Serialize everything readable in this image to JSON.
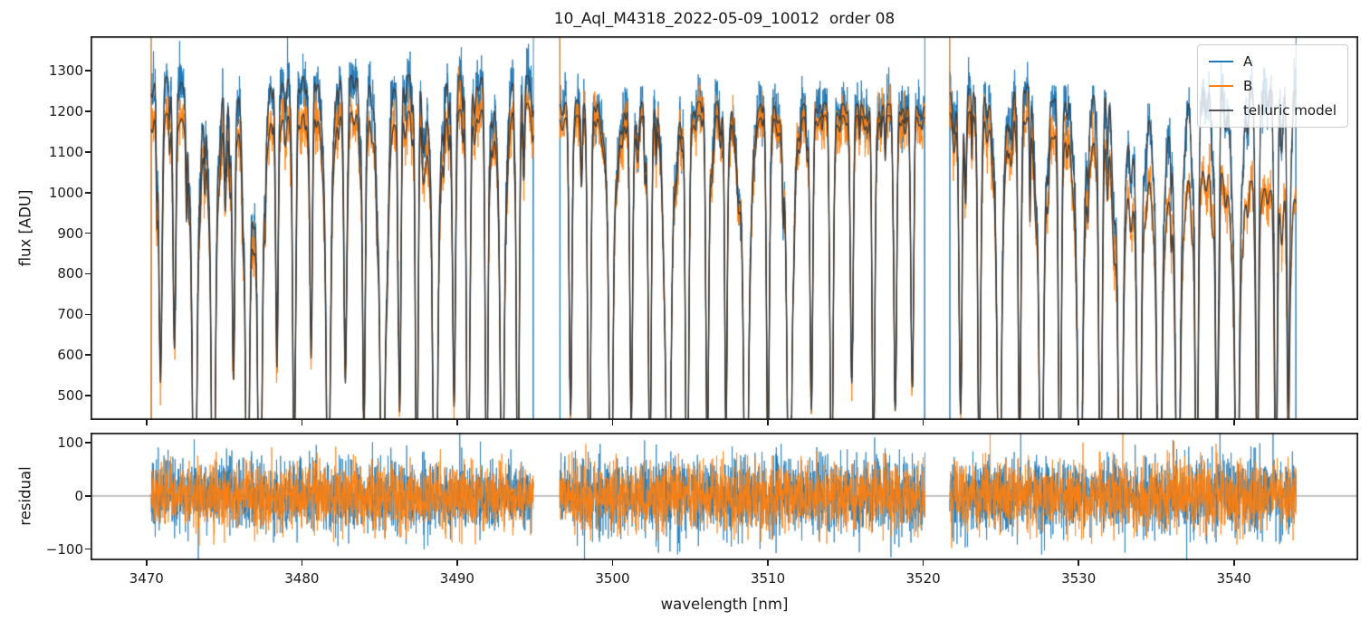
{
  "chart_data": {
    "type": "line",
    "title": "10_Aql_M4318_2022-05-09_10012  order 08",
    "xlabel": "wavelength [nm]",
    "xlim": [
      3466.4,
      3548.0
    ],
    "xticks": [
      3470,
      3480,
      3490,
      3500,
      3510,
      3520,
      3530,
      3540
    ],
    "xtick_labels": [
      "3470",
      "3480",
      "3490",
      "3500",
      "3510",
      "3520",
      "3530",
      "3540"
    ],
    "grid": false,
    "legend_position": "upper right",
    "legend": [
      {
        "label": "A",
        "color": "#1f77b4"
      },
      {
        "label": "B",
        "color": "#ff7f0e"
      },
      {
        "label": "telluric model",
        "color": "#53565a"
      }
    ],
    "panels": [
      {
        "name": "flux",
        "ylabel": "flux [ADU]",
        "ylim": [
          440,
          1385
        ],
        "yticks": [
          500,
          600,
          700,
          800,
          900,
          1000,
          1100,
          1200,
          1300
        ],
        "ytick_labels": [
          "500",
          "600",
          "700",
          "800",
          "900",
          "1000",
          "1100",
          "1200",
          "1300"
        ]
      },
      {
        "name": "residual",
        "ylabel": "residual",
        "ylim": [
          -121,
          119
        ],
        "yticks": [
          100,
          0,
          -100
        ],
        "ytick_labels": [
          "100",
          "0",
          "−100"
        ],
        "zero_line": true,
        "zero_line_color": "#888888"
      }
    ],
    "series_colors": {
      "A": "#1f77b4",
      "B": "#ff7f0e",
      "model": "#3d3d3d"
    },
    "segments": [
      {
        "start": 3470.3,
        "end": 3494.9,
        "b_start_spike": "full"
      },
      {
        "start": 3496.6,
        "end": 3520.1,
        "b_start_spike": "top"
      },
      {
        "start": 3521.7,
        "end": 3544.0,
        "b_start_spike": "top"
      }
    ],
    "continuum_A": [
      [
        3470.3,
        1282
      ],
      [
        3473,
        1290
      ],
      [
        3476,
        1288
      ],
      [
        3479,
        1285
      ],
      [
        3482,
        1292
      ],
      [
        3485,
        1294
      ],
      [
        3488,
        1290
      ],
      [
        3491,
        1288
      ],
      [
        3494.9,
        1289
      ],
      [
        3496.6,
        1226
      ],
      [
        3500,
        1228
      ],
      [
        3504,
        1222
      ],
      [
        3508,
        1226
      ],
      [
        3512,
        1222
      ],
      [
        3516,
        1219
      ],
      [
        3520.1,
        1215
      ],
      [
        3521.7,
        1248
      ],
      [
        3523,
        1256
      ],
      [
        3525,
        1268
      ],
      [
        3527,
        1272
      ],
      [
        3529,
        1263
      ],
      [
        3531,
        1256
      ],
      [
        3533,
        1250
      ],
      [
        3535,
        1258
      ],
      [
        3537,
        1262
      ],
      [
        3539,
        1257
      ],
      [
        3541,
        1262
      ],
      [
        3544,
        1255
      ]
    ],
    "continuum_B": [
      [
        3470.3,
        1192
      ],
      [
        3473,
        1200
      ],
      [
        3476,
        1197
      ],
      [
        3479,
        1193
      ],
      [
        3482,
        1200
      ],
      [
        3485,
        1204
      ],
      [
        3488,
        1199
      ],
      [
        3491,
        1206
      ],
      [
        3493,
        1212
      ],
      [
        3494.9,
        1222
      ],
      [
        3496.6,
        1188
      ],
      [
        3500,
        1192
      ],
      [
        3504,
        1188
      ],
      [
        3508,
        1192
      ],
      [
        3512,
        1190
      ],
      [
        3516,
        1190
      ],
      [
        3520.1,
        1189
      ],
      [
        3521.7,
        1198
      ],
      [
        3524,
        1200
      ],
      [
        3526,
        1196
      ],
      [
        3527.5,
        1186
      ],
      [
        3529,
        1162
      ],
      [
        3531,
        1136
      ],
      [
        3533,
        1106
      ],
      [
        3535,
        1092
      ],
      [
        3536.5,
        1071
      ],
      [
        3538,
        1058
      ],
      [
        3539.5,
        1050
      ],
      [
        3541,
        1034
      ],
      [
        3542.5,
        1006
      ],
      [
        3544,
        984
      ]
    ],
    "absorption_lines": [
      [
        3470.9,
        0.55,
        0.1
      ],
      [
        3471.8,
        0.45,
        0.09
      ],
      [
        3473.1,
        0.95,
        0.12
      ],
      [
        3474.3,
        1.0,
        0.1
      ],
      [
        3475.6,
        0.55,
        0.09
      ],
      [
        3476.5,
        0.95,
        0.1
      ],
      [
        3477.3,
        1.0,
        0.11
      ],
      [
        3478.4,
        0.5,
        0.08
      ],
      [
        3479.5,
        0.75,
        0.09
      ],
      [
        3480.6,
        0.5,
        0.08
      ],
      [
        3481.7,
        0.9,
        0.1
      ],
      [
        3482.8,
        0.55,
        0.09
      ],
      [
        3484.0,
        0.65,
        0.09
      ],
      [
        3485.2,
        1.0,
        0.12
      ],
      [
        3486.3,
        0.6,
        0.08
      ],
      [
        3487.4,
        0.8,
        0.09
      ],
      [
        3488.6,
        1.0,
        0.11
      ],
      [
        3489.8,
        0.6,
        0.09
      ],
      [
        3490.7,
        0.85,
        0.1
      ],
      [
        3491.9,
        0.8,
        0.09
      ],
      [
        3492.9,
        0.9,
        0.1
      ],
      [
        3493.9,
        0.85,
        0.09
      ],
      [
        3497.3,
        0.6,
        0.09
      ],
      [
        3498.5,
        0.8,
        0.1
      ],
      [
        3499.9,
        0.9,
        0.1
      ],
      [
        3501.2,
        0.6,
        0.09
      ],
      [
        3502.4,
        0.75,
        0.09
      ],
      [
        3503.6,
        1.0,
        0.12
      ],
      [
        3504.8,
        0.85,
        0.1
      ],
      [
        3506.1,
        0.7,
        0.09
      ],
      [
        3507.3,
        0.6,
        0.08
      ],
      [
        3508.6,
        1.0,
        0.12
      ],
      [
        3510.0,
        0.7,
        0.09
      ],
      [
        3511.4,
        1.0,
        0.11
      ],
      [
        3512.8,
        0.6,
        0.09
      ],
      [
        3514.1,
        0.8,
        0.1
      ],
      [
        3515.4,
        0.55,
        0.09
      ],
      [
        3516.8,
        0.7,
        0.09
      ],
      [
        3518.2,
        0.6,
        0.09
      ],
      [
        3519.3,
        0.5,
        0.08
      ],
      [
        3522.4,
        0.6,
        0.09
      ],
      [
        3523.6,
        0.75,
        0.09
      ],
      [
        3524.9,
        0.9,
        0.11
      ],
      [
        3526.2,
        0.7,
        0.09
      ],
      [
        3527.6,
        0.9,
        0.11
      ],
      [
        3528.8,
        0.75,
        0.1
      ],
      [
        3530.1,
        1.0,
        0.12
      ],
      [
        3531.4,
        0.8,
        0.1
      ],
      [
        3532.7,
        1.0,
        0.11
      ],
      [
        3533.9,
        0.9,
        0.1
      ],
      [
        3535.2,
        1.0,
        0.12
      ],
      [
        3536.4,
        1.0,
        0.11
      ],
      [
        3537.6,
        0.85,
        0.1
      ],
      [
        3538.9,
        0.7,
        0.09
      ],
      [
        3540.2,
        0.95,
        0.11
      ],
      [
        3541.5,
        0.75,
        0.09
      ],
      [
        3542.7,
        0.8,
        0.09
      ],
      [
        3543.5,
        0.6,
        0.08
      ]
    ],
    "micro_lines": {
      "seed": 1234,
      "range": [
        3469.0,
        3545.5
      ],
      "spacing_min": 0.12,
      "spacing_rand": 0.38,
      "depth_base": 0.02,
      "depth_rand": 0.2,
      "width_base": 0.035,
      "width_rand": 0.065
    },
    "noise_sigma": {
      "flux_A": 33,
      "flux_B": 30,
      "res_A": 36,
      "res_B": 31
    },
    "noise_seed": 77,
    "sample_step": 0.014
  }
}
